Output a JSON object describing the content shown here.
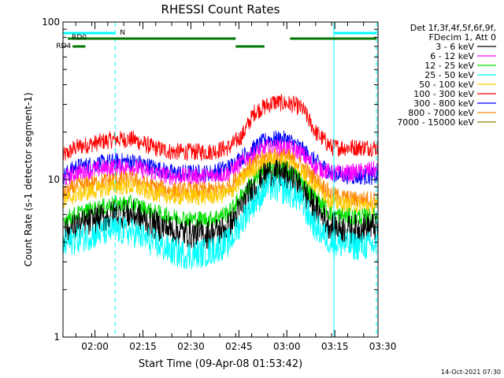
{
  "chart_data": {
    "type": "line",
    "title": "RHESSI Count Rates",
    "xlabel": "Start Time (09-Apr-08 01:53:42)",
    "ylabel": "Count Rate (s-1 detector segment-1)",
    "yscale": "log",
    "ylim": [
      1,
      100
    ],
    "xlim_minutes": [
      -4.0,
      94.5
    ],
    "xticks": [
      {
        "m": 6,
        "label": "02:00"
      },
      {
        "m": 21,
        "label": "02:15"
      },
      {
        "m": 36,
        "label": "02:30"
      },
      {
        "m": 51,
        "label": "02:45"
      },
      {
        "m": 66,
        "label": "03:00"
      },
      {
        "m": 81,
        "label": "03:15"
      },
      {
        "m": 96,
        "label": "03:30"
      }
    ],
    "yticks": [
      {
        "v": 1,
        "label": "1"
      },
      {
        "v": 10,
        "label": "10"
      },
      {
        "v": 100,
        "label": "100"
      }
    ],
    "legend": {
      "position": "right",
      "header": [
        "Det 1f,3f,4f,5f,6f,9f,",
        "FDecim 1, Att 0"
      ],
      "entries": [
        {
          "label": "3 - 6 keV",
          "color": "#000000"
        },
        {
          "label": "6 - 12 keV",
          "color": "#ff00ff"
        },
        {
          "label": "12 - 25 keV",
          "color": "#00dd00"
        },
        {
          "label": "25 - 50 keV",
          "color": "#00ffff"
        },
        {
          "label": "50 - 100 keV",
          "color": "#ffcc00"
        },
        {
          "label": "100 - 300 keV",
          "color": "#ff0000"
        },
        {
          "label": "300 - 800 keV",
          "color": "#0000ff"
        },
        {
          "label": "800 - 7000 keV",
          "color": "#ff8800"
        },
        {
          "label": "7000 - 15000 keV",
          "color": "#888800"
        }
      ]
    },
    "series": [
      {
        "name": "100 - 300 keV",
        "color": "#ff0000",
        "points": [
          [
            -4,
            14
          ],
          [
            0,
            16
          ],
          [
            6,
            17
          ],
          [
            12,
            18
          ],
          [
            18,
            18
          ],
          [
            24,
            16
          ],
          [
            30,
            15
          ],
          [
            36,
            15
          ],
          [
            42,
            15
          ],
          [
            48,
            16
          ],
          [
            52,
            19
          ],
          [
            56,
            27
          ],
          [
            62,
            31
          ],
          [
            68,
            30
          ],
          [
            71,
            28
          ],
          [
            75,
            20
          ],
          [
            80,
            16
          ],
          [
            86,
            16
          ],
          [
            92,
            16
          ],
          [
            94.5,
            16
          ]
        ]
      },
      {
        "name": "300 - 800 keV",
        "color": "#0000ff",
        "points": [
          [
            -4,
            10.5
          ],
          [
            0,
            12
          ],
          [
            6,
            12.5
          ],
          [
            12,
            13
          ],
          [
            18,
            13
          ],
          [
            24,
            12
          ],
          [
            30,
            11
          ],
          [
            36,
            11
          ],
          [
            42,
            11
          ],
          [
            48,
            12
          ],
          [
            54,
            15
          ],
          [
            60,
            18
          ],
          [
            66,
            18
          ],
          [
            70,
            16
          ],
          [
            75,
            13
          ],
          [
            80,
            11
          ],
          [
            86,
            10.5
          ],
          [
            92,
            10.5
          ],
          [
            94.5,
            10.5
          ]
        ]
      },
      {
        "name": "6 - 12 keV",
        "color": "#ff00ff",
        "points": [
          [
            -4,
            10
          ],
          [
            0,
            11
          ],
          [
            6,
            11.5
          ],
          [
            12,
            12
          ],
          [
            18,
            12
          ],
          [
            24,
            11
          ],
          [
            30,
            10.5
          ],
          [
            36,
            10.5
          ],
          [
            42,
            10.5
          ],
          [
            48,
            11
          ],
          [
            54,
            14
          ],
          [
            60,
            16
          ],
          [
            66,
            16
          ],
          [
            70,
            15
          ],
          [
            75,
            12
          ],
          [
            80,
            11
          ],
          [
            86,
            11
          ],
          [
            92,
            11.5
          ],
          [
            94.5,
            11.5
          ]
        ]
      },
      {
        "name": "800 - 7000 keV",
        "color": "#ff8800",
        "points": [
          [
            -4,
            8
          ],
          [
            0,
            9
          ],
          [
            6,
            9.5
          ],
          [
            12,
            10
          ],
          [
            18,
            10
          ],
          [
            24,
            9
          ],
          [
            30,
            8.5
          ],
          [
            36,
            8.5
          ],
          [
            42,
            8.5
          ],
          [
            48,
            9
          ],
          [
            54,
            12
          ],
          [
            60,
            14
          ],
          [
            66,
            14
          ],
          [
            70,
            12.5
          ],
          [
            75,
            10
          ],
          [
            80,
            8
          ],
          [
            86,
            7.5
          ],
          [
            92,
            7.5
          ],
          [
            94.5,
            7.5
          ]
        ]
      },
      {
        "name": "50 - 100 keV",
        "color": "#ffcc00",
        "points": [
          [
            -4,
            7.2
          ],
          [
            0,
            8
          ],
          [
            6,
            8.5
          ],
          [
            12,
            9
          ],
          [
            18,
            9
          ],
          [
            24,
            8.2
          ],
          [
            30,
            7.8
          ],
          [
            36,
            7.8
          ],
          [
            42,
            7.8
          ],
          [
            48,
            8.2
          ],
          [
            54,
            11
          ],
          [
            60,
            13
          ],
          [
            66,
            13
          ],
          [
            70,
            11.5
          ],
          [
            75,
            9
          ],
          [
            80,
            7.2
          ],
          [
            86,
            6.8
          ],
          [
            92,
            6.8
          ],
          [
            94.5,
            6.8
          ]
        ]
      },
      {
        "name": "12 - 25 keV",
        "color": "#00dd00",
        "points": [
          [
            -4,
            5.5
          ],
          [
            0,
            6
          ],
          [
            6,
            6.5
          ],
          [
            12,
            7
          ],
          [
            18,
            7
          ],
          [
            24,
            6.2
          ],
          [
            30,
            5.8
          ],
          [
            36,
            5.6
          ],
          [
            42,
            5.6
          ],
          [
            48,
            6.2
          ],
          [
            54,
            9
          ],
          [
            60,
            11.5
          ],
          [
            66,
            11.5
          ],
          [
            70,
            10
          ],
          [
            75,
            7.5
          ],
          [
            80,
            6
          ],
          [
            86,
            5.8
          ],
          [
            92,
            5.8
          ],
          [
            94.5,
            5.8
          ]
        ]
      },
      {
        "name": "3 - 6 keV",
        "color": "#000000",
        "points": [
          [
            -4,
            4.5
          ],
          [
            0,
            5
          ],
          [
            6,
            5.5
          ],
          [
            12,
            6
          ],
          [
            18,
            6
          ],
          [
            24,
            5.2
          ],
          [
            30,
            4.8
          ],
          [
            36,
            4.5
          ],
          [
            42,
            4.5
          ],
          [
            48,
            5
          ],
          [
            54,
            8
          ],
          [
            60,
            11
          ],
          [
            66,
            10.5
          ],
          [
            70,
            9
          ],
          [
            75,
            6.5
          ],
          [
            80,
            5
          ],
          [
            86,
            4.8
          ],
          [
            92,
            5
          ],
          [
            94.5,
            5
          ]
        ]
      },
      {
        "name": "25 - 50 keV",
        "color": "#00ffff",
        "points": [
          [
            -4,
            3.8
          ],
          [
            0,
            4.2
          ],
          [
            6,
            4.5
          ],
          [
            12,
            4.8
          ],
          [
            18,
            4.6
          ],
          [
            24,
            4
          ],
          [
            30,
            3.5
          ],
          [
            36,
            3.3
          ],
          [
            42,
            3.5
          ],
          [
            48,
            4
          ],
          [
            54,
            6.5
          ],
          [
            60,
            9
          ],
          [
            66,
            8.5
          ],
          [
            70,
            7.5
          ],
          [
            75,
            5
          ],
          [
            80,
            4
          ],
          [
            86,
            3.8
          ],
          [
            92,
            3.8
          ],
          [
            94.5,
            3.8
          ]
        ]
      }
    ],
    "markers": {
      "vlines_solid_minutes": [
        -4,
        80.7
      ],
      "vlines_dashed_minutes": [
        12.3,
        94.0
      ],
      "bands": [
        {
          "label": "N",
          "color": "#00ffff",
          "row": 1,
          "segments": [
            [
              -4,
              12.3
            ],
            [
              80.7,
              94.0
            ]
          ]
        },
        {
          "label": "RD0",
          "color": "#007700",
          "row": 2,
          "segments": [
            [
              -2.5,
              50
            ],
            [
              67,
              94.0
            ]
          ]
        },
        {
          "label": "RD4",
          "color": "#007700",
          "row": 3,
          "segments": [
            [
              -1,
              3
            ],
            [
              50,
              59
            ]
          ]
        }
      ]
    }
  },
  "footer": {
    "timestamp": "14-Oct-2021 07:30"
  }
}
